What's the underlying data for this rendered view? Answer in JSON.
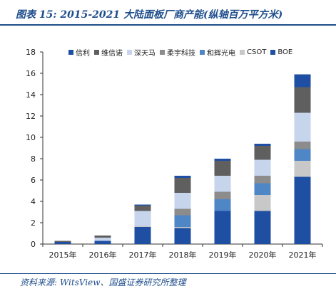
{
  "header": {
    "title": "图表 15:  2015-2021 大陆面板厂商产能(纵轴百万平方米)"
  },
  "footer": {
    "source": "资料来源:  WitsView、国盛证券研究所整理"
  },
  "chart_data": {
    "type": "bar",
    "stacked": true,
    "categories": [
      "2015年",
      "2016年",
      "2017年",
      "2018年",
      "2019年",
      "2020年",
      "2021年"
    ],
    "series": [
      {
        "name": "BOE",
        "color": "#1f4fa3",
        "values": [
          0.2,
          0.3,
          1.6,
          1.5,
          3.1,
          3.1,
          6.3
        ]
      },
      {
        "name": "CSOT",
        "color": "#c8c8c8",
        "values": [
          0.0,
          0.0,
          0.1,
          0.1,
          0.0,
          1.5,
          1.5
        ]
      },
      {
        "name": "和辉光电",
        "color": "#4f86c6",
        "values": [
          0.0,
          0.0,
          0.0,
          1.1,
          1.1,
          1.1,
          1.1
        ]
      },
      {
        "name": "柔宇科技",
        "color": "#8c8c8c",
        "values": [
          0.0,
          0.0,
          0.0,
          0.6,
          0.7,
          0.7,
          0.7
        ]
      },
      {
        "name": "深天马",
        "color": "#c6d4ec",
        "values": [
          0.0,
          0.3,
          1.4,
          1.5,
          1.5,
          1.5,
          2.7
        ]
      },
      {
        "name": "维信诺",
        "color": "#5f5f5f",
        "values": [
          0.1,
          0.2,
          0.5,
          1.4,
          1.4,
          1.3,
          2.4
        ]
      },
      {
        "name": "信利",
        "color": "#1f4fa3",
        "values": [
          0.0,
          0.0,
          0.1,
          0.2,
          0.2,
          0.2,
          1.2
        ]
      }
    ],
    "legend": [
      "信利",
      "维信诺",
      "深天马",
      "柔宇科技",
      "和辉光电",
      "CSOT",
      "BOE"
    ],
    "legend_placement": "top",
    "ylim": [
      0,
      18
    ],
    "yticks": [
      0,
      2,
      4,
      6,
      8,
      10,
      12,
      14,
      16,
      18
    ],
    "ytick_labels": [
      "0",
      "2",
      "4",
      "6",
      "8",
      "10",
      "12",
      "14",
      "16",
      "18"
    ],
    "xlabel": "",
    "ylabel": "",
    "grid": false
  }
}
